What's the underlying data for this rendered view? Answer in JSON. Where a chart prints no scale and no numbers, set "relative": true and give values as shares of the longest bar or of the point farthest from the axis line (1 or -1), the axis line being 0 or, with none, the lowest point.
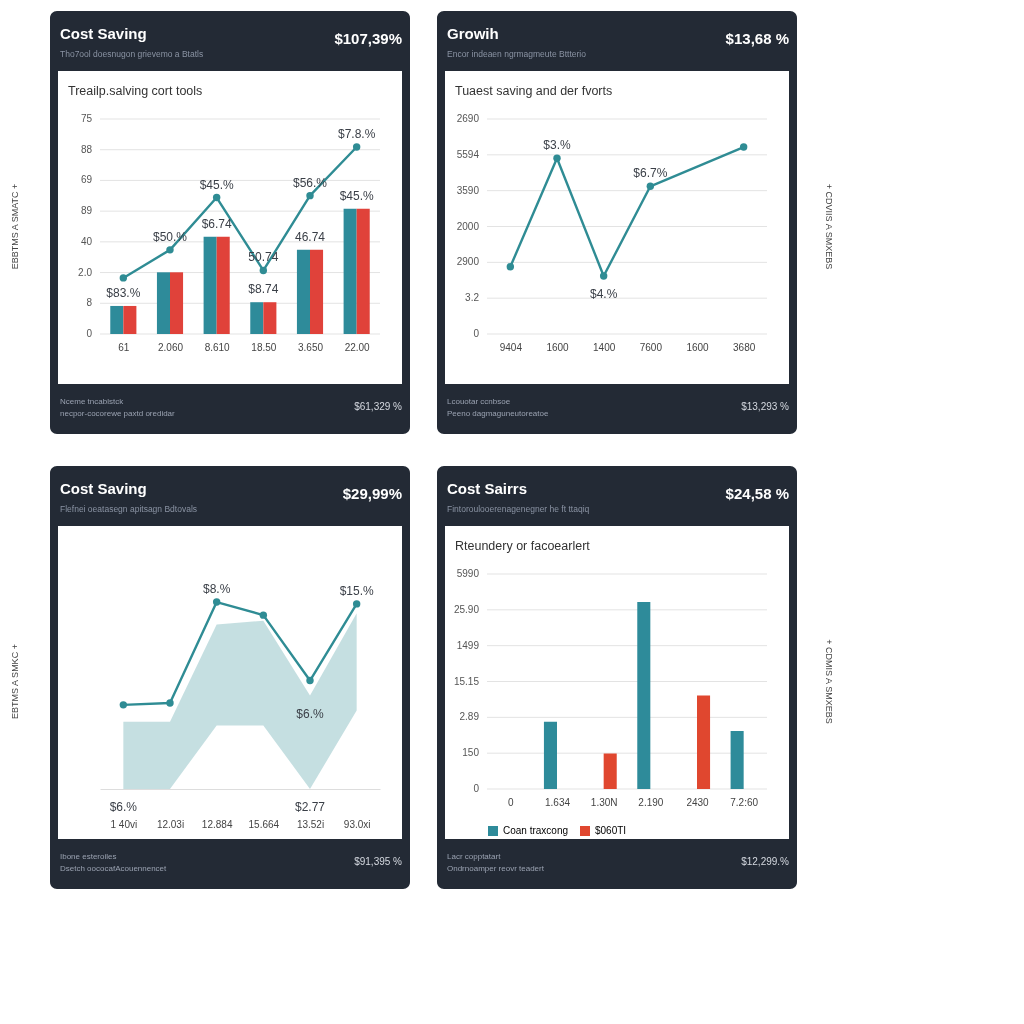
{
  "chart_data": [
    {
      "type": "bar",
      "title": "Treailp.salving cort tools",
      "relative": true,
      "tick_labels": "x",
      "categories": [
        "61",
        "2.060",
        "8.610",
        "18.50",
        "3.650",
        "22.00"
      ],
      "series": [
        {
          "color": "#2e8b9a",
          "values": [
            0.15,
            0.33,
            0.52,
            0.17,
            0.45,
            0.67
          ]
        },
        {
          "color": "#e0423a",
          "values": [
            0.15,
            0.33,
            0.52,
            0.17,
            0.45,
            0.67
          ]
        },
        {
          "type": "line",
          "color": "#2f8c94",
          "values": [
            0.3,
            0.45,
            0.73,
            0.34,
            0.74,
            1.0
          ]
        }
      ],
      "grid": "y",
      "marker": "circle",
      "annotations": [
        "Cost Saving",
        "Tho7ool doesnugon grievemo a Btatls",
        "$107,39%",
        "Nceme tncablstck",
        "necpor-cocorewe paxtd oredidar",
        "$61,329 %",
        "EBBTMS A SMATC +",
        "75",
        "88",
        "69",
        "89",
        "40",
        "2.0",
        "8",
        "0",
        {
          "text": "$83.%",
          "x": "61",
          "y": 0.15
        },
        {
          "text": "$50.%",
          "x": "2.060",
          "y": 0.45
        },
        {
          "text": "$6.74",
          "x": "8.610",
          "y": 0.52
        },
        {
          "text": "$8.74",
          "x": "18.50",
          "y": 0.17
        },
        {
          "text": "46.74",
          "x": "3.650",
          "y": 0.45
        },
        {
          "text": "$45.%",
          "x": "22.00",
          "y": 0.67
        },
        {
          "text": "$45.%",
          "x": "8.610",
          "y": 0.73
        },
        {
          "text": "50.74",
          "x": "18.50",
          "y": 0.34
        },
        {
          "text": "$56.%",
          "x": "3.650",
          "y": 0.74
        },
        {
          "text": "$7.8.%",
          "x": "22.00",
          "y": 1.0
        }
      ]
    },
    {
      "type": "line",
      "title": "Tuaest saving and der fvorts",
      "relative": true,
      "tick_labels": "x",
      "categories": [
        "9404",
        "1600",
        "1400",
        "7600",
        "1600",
        "3680"
      ],
      "series": [
        {
          "color": "#2f8c94",
          "values": [
            0.36,
            0.94,
            0.31,
            0.79,
            null,
            1.0
          ]
        }
      ],
      "grid": "y",
      "marker": "circle",
      "annotations": [
        "Growih",
        "Encor indeaen ngrmagmeute Bttterio",
        "$13,68 %",
        "Lcouotar ccnbsoe",
        "Peeno dagmaguneutoreatoe",
        "$13,293 %",
        "+ CDVIIS A SMXEBS",
        "2690",
        "5594",
        "3590",
        "2000",
        "2900",
        "3.2",
        "0",
        {
          "text": "$3.%",
          "x": "1600",
          "y": 0.94
        },
        {
          "text": "$4.%",
          "x": "1400",
          "y": 0.31
        },
        {
          "text": "$6.7%",
          "x": "7600",
          "y": 0.79
        }
      ]
    },
    {
      "type": "line",
      "relative": true,
      "tick_labels": "x",
      "categories": [
        "1 40vi",
        "12.03i",
        "12.884",
        "15.664",
        "13.52i",
        "93.0xi"
      ],
      "series": [
        {
          "color": "#2f8c94",
          "values": [
            0.45,
            0.46,
            1.0,
            0.93,
            0.58,
            0.99
          ],
          "lower": [
            0,
            0,
            0.34,
            0.34,
            0,
            0.42
          ],
          "upper": [
            0.36,
            0.36,
            0.88,
            0.9,
            0.5,
            0.94
          ]
        }
      ],
      "marker": "circle",
      "annotations": [
        "Cost Saving",
        "Flefnei oeatasegn apitsagn Bdtovals",
        "$29,99%",
        "Ibone esteroiles",
        "Dsetch oococafAcouennencet",
        "$91,395 %",
        "EBTMS A SMKC +",
        {
          "text": "$8.%",
          "x": "12.884",
          "y": 1.0
        },
        {
          "text": "$15.%",
          "x": "93.0xi",
          "y": 0.99
        },
        {
          "text": "$6.%",
          "x": "13.52i",
          "y": 0.5
        },
        {
          "text": "$6.%",
          "x": "1 40vi",
          "y": 0
        },
        {
          "text": "$2.77",
          "x": "13.52i",
          "y": 0
        }
      ]
    },
    {
      "type": "bar",
      "title": "Rteundery or facoearlert",
      "relative": true,
      "tick_labels": "x",
      "categories": [
        "0",
        "1.634",
        "1.30N",
        "2.190",
        "2430",
        "7.2:60"
      ],
      "series": [
        {
          "name": "Coan traxcong",
          "color": "#2e8b9a",
          "values": [
            null,
            0.36,
            null,
            1.0,
            null,
            0.31
          ]
        },
        {
          "name": "$060TI",
          "color": "#e0472f",
          "values": [
            null,
            null,
            0.19,
            null,
            0.5,
            null
          ]
        }
      ],
      "grid": "y",
      "legend": "bottom",
      "annotations": [
        "Cost Sairrs",
        "Fintoroulooerenagenegner he ft ttaqiq",
        "$24,58 %",
        "Lacr copptatart",
        "Ondrnoamper reovr teadert",
        "$12,299.%",
        "+ CDMIS A SMXEBS",
        "5990",
        "25.90",
        "1499",
        "15.15",
        "2.89",
        "150",
        "0"
      ]
    }
  ]
}
